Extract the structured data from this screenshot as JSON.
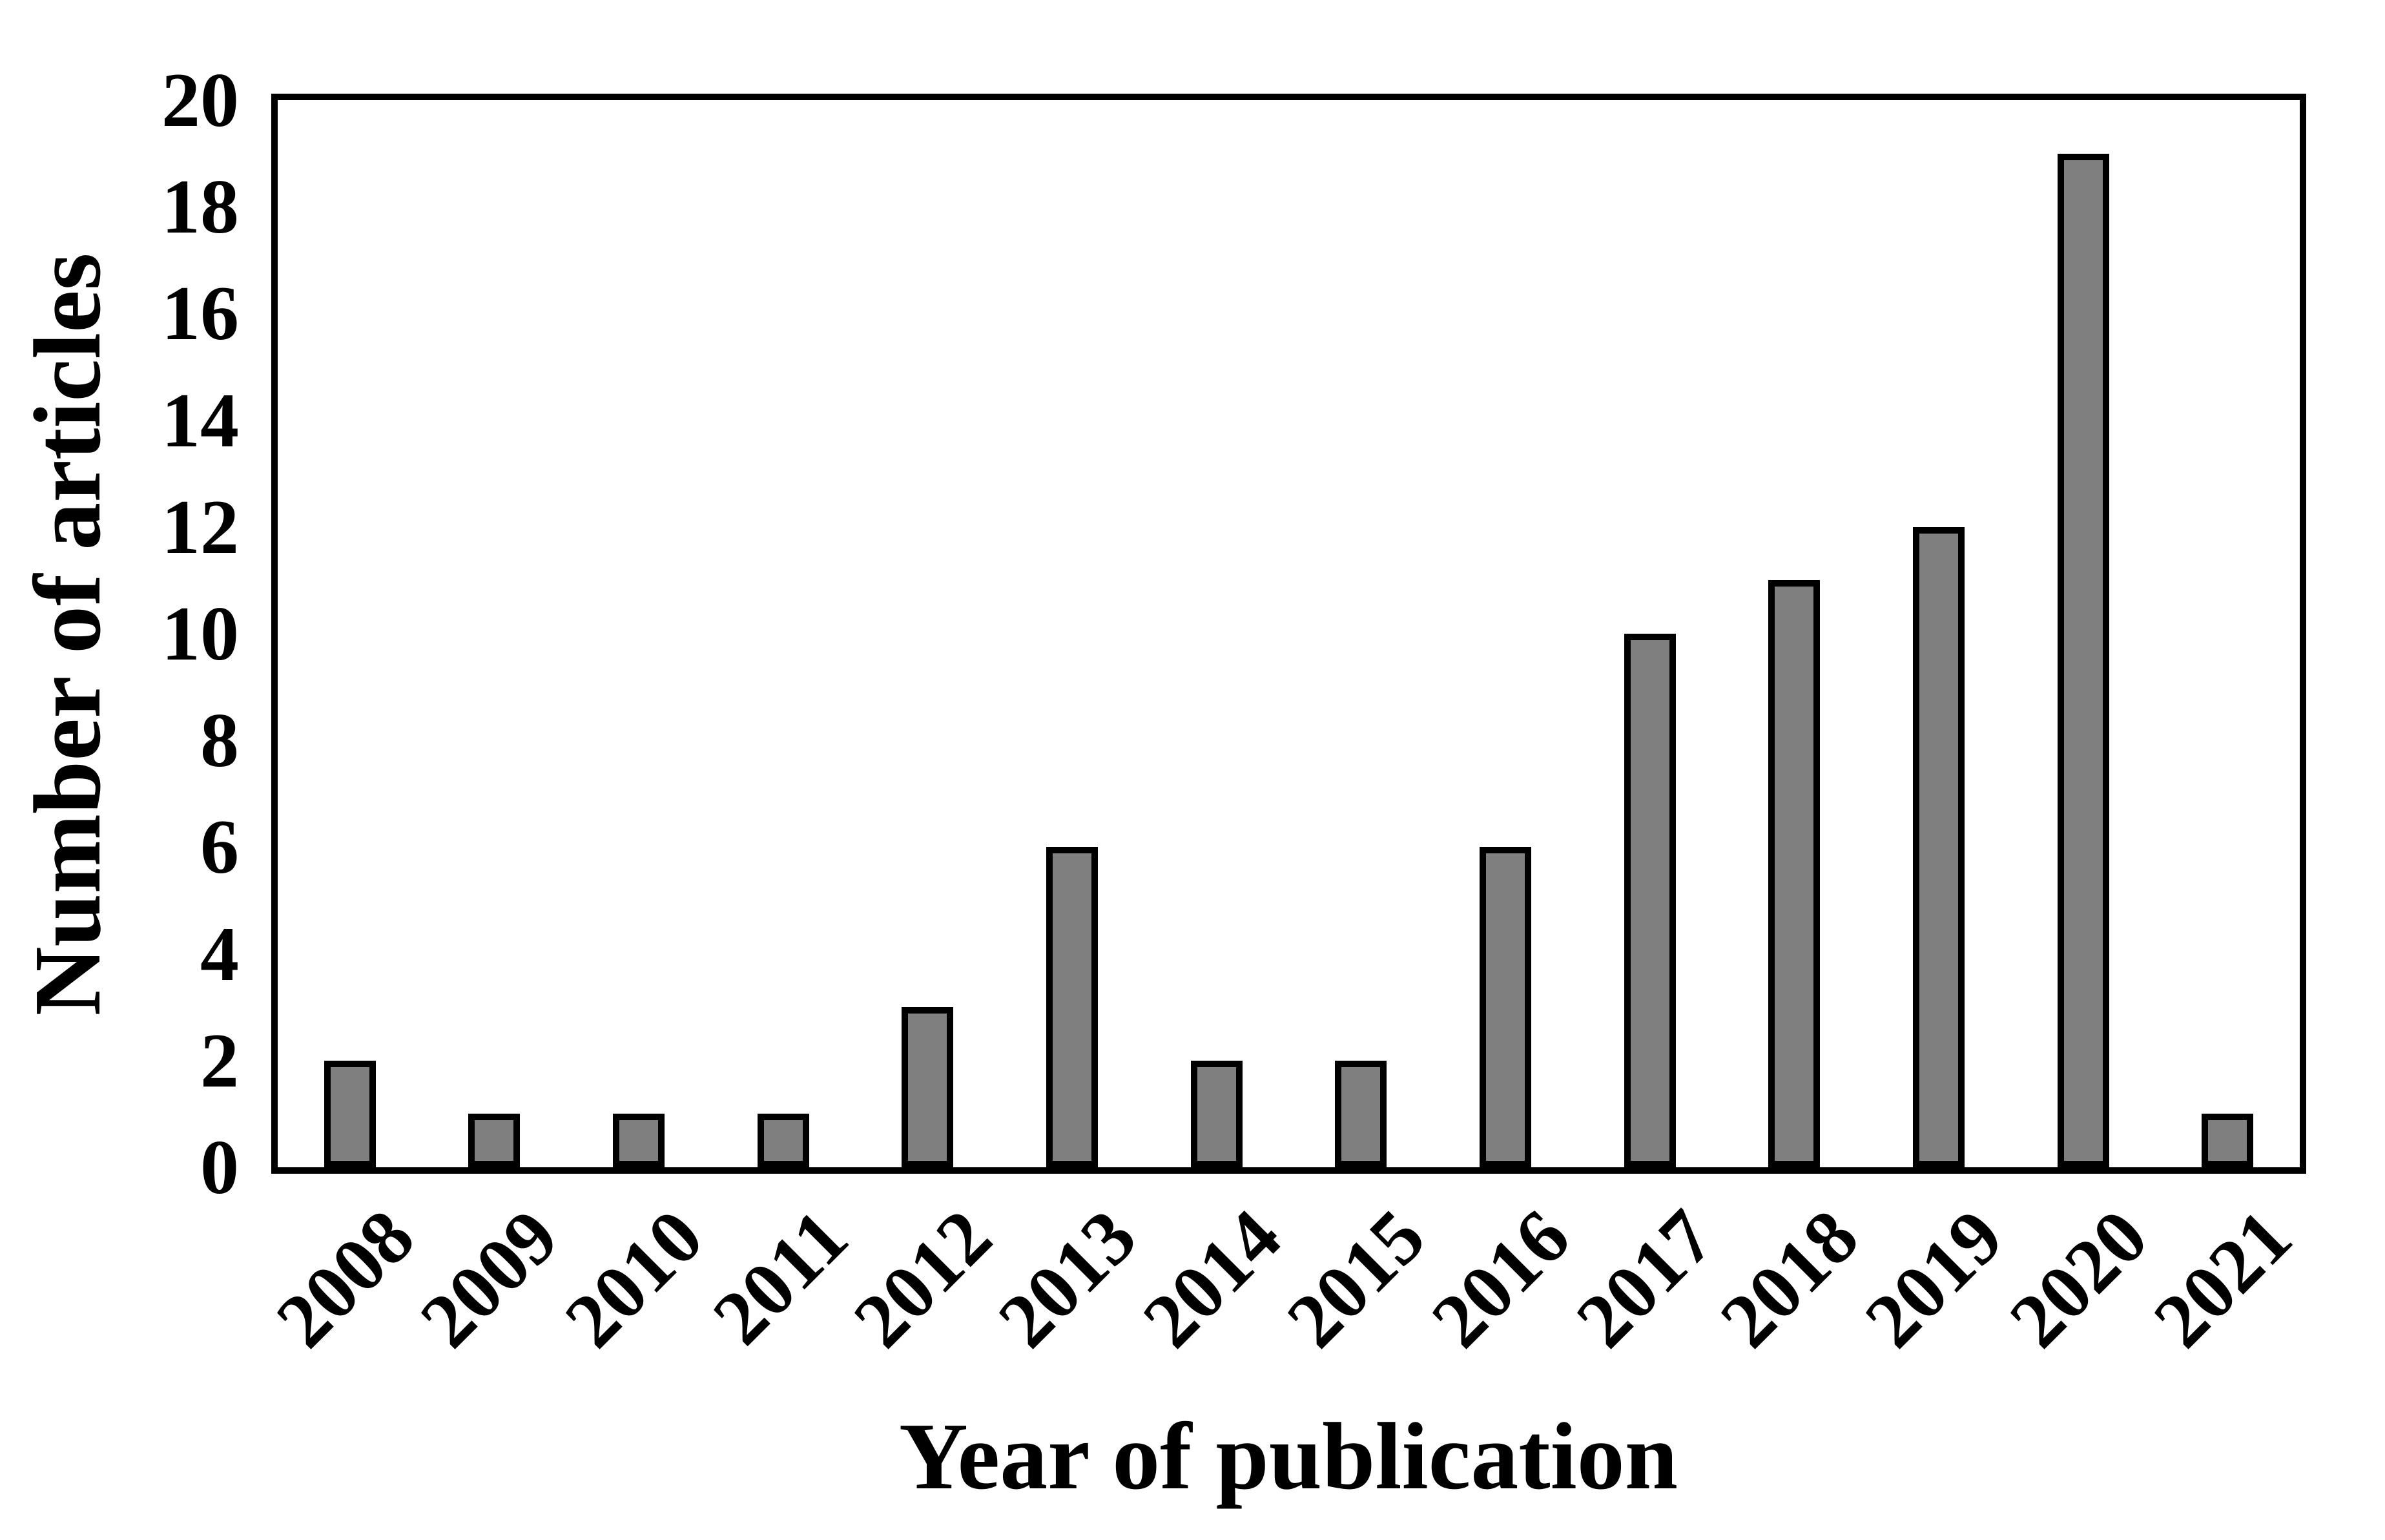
{
  "chart_data": {
    "type": "bar",
    "title": "",
    "categories": [
      "2008",
      "2009",
      "2010",
      "2011",
      "2012",
      "2013",
      "2014",
      "2015",
      "2016",
      "2017",
      "2018",
      "2019",
      "2020",
      "2021"
    ],
    "values": [
      2,
      1,
      1,
      1,
      3,
      6,
      2,
      2,
      6,
      10,
      11,
      12,
      19,
      1
    ],
    "xlabel": "Year of publication",
    "ylabel": "Number of articles",
    "ylim": [
      0,
      20
    ],
    "yticks": [
      0,
      2,
      4,
      6,
      8,
      10,
      12,
      14,
      16,
      18,
      20
    ],
    "grid": "off",
    "legend": "none",
    "xtick_rotation_deg": 45,
    "colors": {
      "bar_fill": "#7f7f7f",
      "bar_border": "#000000",
      "axis": "#000000",
      "text": "#000000",
      "background": "#ffffff"
    }
  }
}
